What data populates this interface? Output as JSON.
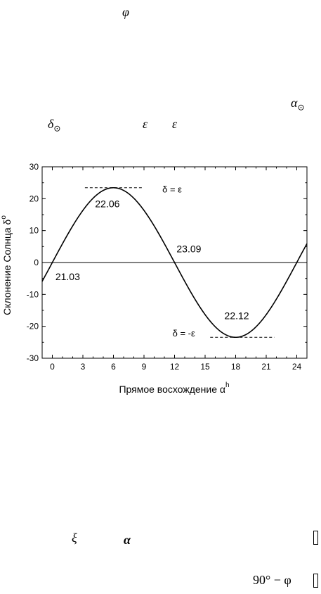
{
  "text_fragments": {
    "phi_top": "φ",
    "alpha_sun": "α",
    "alpha_sun_sub": "⊙",
    "delta_sun": "δ",
    "delta_sun_sub": "⊙",
    "eps1": "ε",
    "eps2": "ε",
    "xi_bottom": "ξ",
    "alpha_bottom": "α",
    "ninety_minus_phi": "90° − φ"
  },
  "chart_data": {
    "type": "line",
    "xlabel": "Прямое восхождение  α",
    "xlabel_sup": "h",
    "ylabel": "Склонение Солнца  δ",
    "ylabel_sup": "o",
    "xlim": [
      -1,
      25
    ],
    "ylim": [
      -30,
      30
    ],
    "x_ticks": [
      0,
      3,
      6,
      9,
      12,
      15,
      18,
      21,
      24
    ],
    "y_ticks": [
      -30,
      -20,
      -10,
      0,
      10,
      20,
      30
    ],
    "series": [
      {
        "function": "arcsin(sin(23.44°)·sin(15°·α))",
        "epsilon_deg": 23.44,
        "x_range": [
          -1,
          25
        ]
      }
    ],
    "zero_line": true,
    "data_labels": [
      {
        "x": 0.3,
        "y": -5.5,
        "text": "21.03"
      },
      {
        "x": 4.2,
        "y": 17.3,
        "text": "22.06"
      },
      {
        "x": 12.2,
        "y": 3.2,
        "text": "23.09"
      },
      {
        "x": 16.9,
        "y": -17.8,
        "text": "22.12"
      }
    ],
    "reference_lines": [
      {
        "y": 23.44,
        "x_from": 3.2,
        "x_to": 8.9,
        "style": "dashed",
        "label": "δ = ε",
        "label_x": 10.8,
        "label_y": 22.0
      },
      {
        "y": -23.44,
        "x_from": 15.5,
        "x_to": 21.8,
        "style": "dashed",
        "label": "δ = -ε",
        "label_x": 11.8,
        "label_y": -23.2
      }
    ],
    "grid": false
  }
}
